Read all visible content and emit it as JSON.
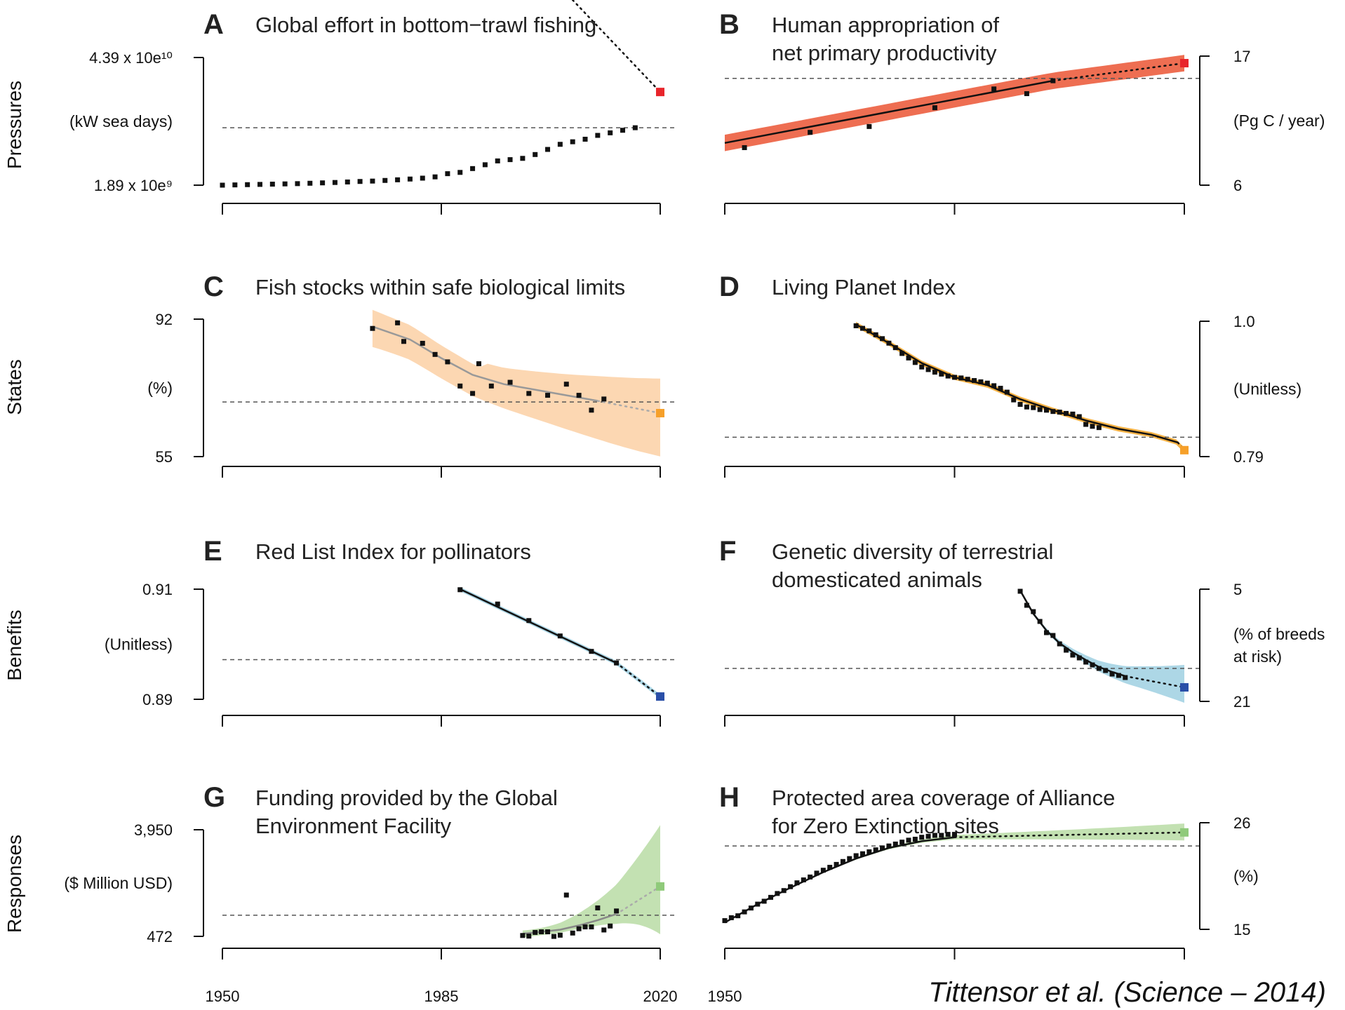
{
  "row_labels": [
    "Pressures",
    "States",
    "Benefits",
    "Responses"
  ],
  "x_axis": {
    "ticks": [
      1950,
      1985,
      2020
    ],
    "right_panel_ticks_labeled": [
      1950
    ]
  },
  "credit": "Tittensor et al. (Science – 2014)",
  "colors": {
    "pressures": "#ee6e52",
    "pressures_end": "#e8252b",
    "states": "#fbd0a4",
    "states_end": "#f6a02a",
    "states_dark": "#f4a425",
    "benefits": "#9fd0e2",
    "benefits_end": "#2a4fa8",
    "responses": "#b9dca4",
    "responses_end": "#8fca7a",
    "points": "#111111"
  },
  "chart_data": [
    {
      "id": "A",
      "type": "line",
      "title": "Global effort in bottom−trawl fishing",
      "row": "Pressures",
      "axis_side": "left",
      "y_top_label": "4.39 x 10e¹⁰",
      "y_bottom_label": "1.89 x 10e⁹",
      "y_unit": [
        "(kW sea days)"
      ],
      "ylim": [
        0,
        1
      ],
      "scale": "unitless display (normalized to axis range)",
      "target": 0.45,
      "end_value": 0.73,
      "end_year": 2020,
      "points": [
        [
          1950,
          0
        ],
        [
          1952,
          0.002
        ],
        [
          1954,
          0.004
        ],
        [
          1956,
          0.006
        ],
        [
          1958,
          0.008
        ],
        [
          1960,
          0.01
        ],
        [
          1962,
          0.012
        ],
        [
          1964,
          0.015
        ],
        [
          1966,
          0.018
        ],
        [
          1968,
          0.021
        ],
        [
          1970,
          0.025
        ],
        [
          1972,
          0.029
        ],
        [
          1974,
          0.032
        ],
        [
          1976,
          0.037
        ],
        [
          1978,
          0.042
        ],
        [
          1980,
          0.048
        ],
        [
          1982,
          0.055
        ],
        [
          1984,
          0.065
        ],
        [
          1986,
          0.09
        ],
        [
          1988,
          0.1
        ],
        [
          1990,
          0.13
        ],
        [
          1992,
          0.16
        ],
        [
          1994,
          0.19
        ],
        [
          1996,
          0.2
        ],
        [
          1998,
          0.21
        ],
        [
          2000,
          0.24
        ],
        [
          2002,
          0.28
        ],
        [
          2004,
          0.32
        ],
        [
          2006,
          0.34
        ],
        [
          2008,
          0.36
        ],
        [
          2010,
          0.39
        ],
        [
          2012,
          0.41
        ],
        [
          2014,
          0.43
        ],
        [
          2016,
          0.45
        ]
      ],
      "fit_end": 2006,
      "band_end_lo": 0.45,
      "band_end_hi": 1.0,
      "series_color": "pressures",
      "end_color": "pressures_end",
      "fit_color": "#111111"
    },
    {
      "id": "B",
      "type": "line",
      "title_lines": [
        "Human appropriation of",
        "net primary productivity"
      ],
      "row": "Pressures",
      "axis_side": "right",
      "y_top_label": "17",
      "y_bottom_label": "6",
      "y_unit": [
        "(Pg C / year)"
      ],
      "ylim": [
        6,
        17
      ],
      "target": 15.1,
      "end_value": 16.4,
      "end_year": 2020,
      "points": [
        [
          1953,
          9.2
        ],
        [
          1963,
          10.5
        ],
        [
          1972,
          11.0
        ],
        [
          1982,
          12.6
        ],
        [
          1991,
          14.2
        ],
        [
          1996,
          13.8
        ],
        [
          2000,
          14.9
        ]
      ],
      "fit_start": 1950,
      "fit_end": 2000,
      "fit_start_value": 9.6,
      "fit_end_value": 14.9,
      "band_width": 0.7,
      "series_color": "pressures",
      "end_color": "pressures_end",
      "fit_color": "#111111"
    },
    {
      "id": "C",
      "type": "line",
      "title": "Fish stocks within safe biological limits",
      "row": "States",
      "axis_side": "left",
      "y_top_label": "92",
      "y_bottom_label": "55",
      "y_unit": [
        "(%)"
      ],
      "ylim": [
        55,
        92
      ],
      "target": 69.7,
      "end_value": 66.7,
      "end_year": 2020,
      "points": [
        [
          1974,
          89.5
        ],
        [
          1978,
          91
        ],
        [
          1979,
          86
        ],
        [
          1982,
          85.5
        ],
        [
          1984,
          82.5
        ],
        [
          1986,
          80.5
        ],
        [
          1988,
          74
        ],
        [
          1990,
          72
        ],
        [
          1991,
          80
        ],
        [
          1993,
          74
        ],
        [
          1996,
          75
        ],
        [
          1999,
          72
        ],
        [
          2002,
          71.5
        ],
        [
          2005,
          74.5
        ],
        [
          2007,
          71.5
        ],
        [
          2009,
          67.5
        ],
        [
          2011,
          70.5
        ]
      ],
      "fit": [
        [
          1974,
          90
        ],
        [
          1980,
          86.5
        ],
        [
          1985,
          81.5
        ],
        [
          1990,
          77
        ],
        [
          1995,
          74.5
        ],
        [
          2000,
          73
        ],
        [
          2005,
          71.5
        ],
        [
          2010,
          70
        ]
      ],
      "band_start_lo": 85,
      "band_start_hi": 95,
      "band_end_lo": 57,
      "band_end_hi": 76,
      "series_color": "states",
      "end_color": "states_end",
      "fit_color": "#999999"
    },
    {
      "id": "D",
      "type": "line",
      "title": "Living Planet Index",
      "row": "States",
      "axis_side": "right",
      "y_top_label": "1.0",
      "y_bottom_label": "0.79",
      "y_unit": [
        "(Unitless)"
      ],
      "ylim": [
        0.79,
        1.0
      ],
      "target": 0.82,
      "end_value": 0.8,
      "end_year": 2020,
      "points": [
        [
          1970,
          0.993
        ],
        [
          1971,
          0.989
        ],
        [
          1972,
          0.985
        ],
        [
          1973,
          0.979
        ],
        [
          1974,
          0.973
        ],
        [
          1975,
          0.966
        ],
        [
          1976,
          0.959
        ],
        [
          1977,
          0.95
        ],
        [
          1978,
          0.943
        ],
        [
          1979,
          0.936
        ],
        [
          1980,
          0.929
        ],
        [
          1981,
          0.925
        ],
        [
          1982,
          0.921
        ],
        [
          1983,
          0.918
        ],
        [
          1984,
          0.915
        ],
        [
          1985,
          0.913
        ],
        [
          1986,
          0.912
        ],
        [
          1987,
          0.91
        ],
        [
          1988,
          0.908
        ],
        [
          1989,
          0.906
        ],
        [
          1990,
          0.904
        ],
        [
          1991,
          0.9
        ],
        [
          1992,
          0.896
        ],
        [
          1993,
          0.89
        ],
        [
          1994,
          0.878
        ],
        [
          1995,
          0.871
        ],
        [
          1996,
          0.867
        ],
        [
          1997,
          0.866
        ],
        [
          1998,
          0.863
        ],
        [
          1999,
          0.862
        ],
        [
          2000,
          0.86
        ],
        [
          2001,
          0.859
        ],
        [
          2002,
          0.857
        ],
        [
          2003,
          0.856
        ],
        [
          2004,
          0.852
        ],
        [
          2005,
          0.84
        ],
        [
          2006,
          0.837
        ],
        [
          2007,
          0.835
        ]
      ],
      "fit": [
        [
          1970,
          0.995
        ],
        [
          1975,
          0.966
        ],
        [
          1980,
          0.935
        ],
        [
          1985,
          0.913
        ],
        [
          1990,
          0.901
        ],
        [
          1995,
          0.879
        ],
        [
          2000,
          0.862
        ],
        [
          2005,
          0.846
        ],
        [
          2010,
          0.833
        ],
        [
          2015,
          0.824
        ],
        [
          2019,
          0.812
        ]
      ],
      "band_width": 0.004,
      "series_color": "states_dark",
      "end_color": "states_end",
      "fit_color": "#111111"
    },
    {
      "id": "E",
      "type": "line",
      "title": "Red List Index for pollinators",
      "row": "Benefits",
      "axis_side": "left",
      "y_top_label": "0.91",
      "y_bottom_label": "0.89",
      "y_unit": [
        "(Unitless)"
      ],
      "ylim": [
        0.89,
        0.91
      ],
      "target": 0.8972,
      "end_value": 0.8905,
      "end_year": 2020,
      "points": [
        [
          1988,
          0.9099
        ],
        [
          1994,
          0.9073
        ],
        [
          1999,
          0.9043
        ],
        [
          2004,
          0.9015
        ],
        [
          2009,
          0.8987
        ],
        [
          2013,
          0.8966
        ]
      ],
      "fit_start": 1988,
      "fit_end": 2013,
      "fit_start_value": 0.91,
      "fit_end_value": 0.8966,
      "band_width": 0.0004,
      "series_color": "benefits",
      "end_color": "benefits_end",
      "fit_color": "#111111"
    },
    {
      "id": "F",
      "type": "line",
      "title_lines": [
        "Genetic diversity of terrestrial",
        "domesticated animals"
      ],
      "row": "Benefits",
      "axis_side": "right",
      "y_top_label": "5",
      "y_bottom_label": "21",
      "y_unit": [
        "(% of breeds",
        "at risk)"
      ],
      "ylim": [
        21,
        5
      ],
      "target": 16.3,
      "end_value": 19.0,
      "end_year": 2020,
      "points": [
        [
          1995,
          5.3
        ],
        [
          1996,
          7.3
        ],
        [
          1997,
          8.2
        ],
        [
          1998,
          9.6
        ],
        [
          1999,
          11.2
        ],
        [
          2000,
          11.6
        ],
        [
          2001,
          12.8
        ],
        [
          2002,
          13.7
        ],
        [
          2003,
          14.4
        ],
        [
          2004,
          14.8
        ],
        [
          2005,
          15.4
        ],
        [
          2006,
          15.8
        ],
        [
          2007,
          16.3
        ],
        [
          2008,
          16.6
        ],
        [
          2009,
          17.1
        ],
        [
          2010,
          17.3
        ],
        [
          2011,
          17.6
        ]
      ],
      "fit": [
        [
          1995,
          5.2
        ],
        [
          1997,
          8.5
        ],
        [
          1999,
          10.9
        ],
        [
          2001,
          12.7
        ],
        [
          2003,
          14.0
        ],
        [
          2005,
          15.1
        ],
        [
          2007,
          16.1
        ],
        [
          2009,
          16.8
        ],
        [
          2011,
          17.4
        ]
      ],
      "band_end_lo": 16.0,
      "band_end_hi": 21.0,
      "series_color": "benefits",
      "end_color": "benefits_end",
      "fit_color": "#111111"
    },
    {
      "id": "G",
      "type": "line",
      "title_lines": [
        "Funding provided by the Global",
        "Environment Facility"
      ],
      "row": "Responses",
      "axis_side": "left",
      "y_top_label": "3,950",
      "y_bottom_label": "472",
      "y_unit": [
        "($ Million USD)"
      ],
      "ylim": [
        472,
        3950
      ],
      "target": 1160,
      "end_value": 2100,
      "end_year": 2020,
      "points": [
        [
          1998,
          500
        ],
        [
          1999,
          480
        ],
        [
          2000,
          600
        ],
        [
          2001,
          620
        ],
        [
          2002,
          620
        ],
        [
          2003,
          470
        ],
        [
          2004,
          510
        ],
        [
          2005,
          1820
        ],
        [
          2006,
          580
        ],
        [
          2007,
          720
        ],
        [
          2008,
          780
        ],
        [
          2009,
          780
        ],
        [
          2010,
          1400
        ],
        [
          2011,
          680
        ],
        [
          2012,
          810
        ],
        [
          2013,
          1300
        ]
      ],
      "fit": [
        [
          1998,
          560
        ],
        [
          2001,
          620
        ],
        [
          2004,
          690
        ],
        [
          2007,
          830
        ],
        [
          2010,
          1000
        ],
        [
          2013,
          1200
        ]
      ],
      "band_start_lo": 470,
      "band_start_hi": 700,
      "band_end_lo": 800,
      "band_end_hi": 4100,
      "series_color": "responses",
      "end_color": "responses_end",
      "fit_color": "#888888"
    },
    {
      "id": "H",
      "type": "line",
      "title_lines": [
        "Protected area coverage of Alliance",
        "for Zero Extinction sites"
      ],
      "row": "Responses",
      "axis_side": "right",
      "y_top_label": "26",
      "y_bottom_label": "15",
      "y_unit": [
        "(%)"
      ],
      "ylim": [
        15,
        26
      ],
      "target": 23.6,
      "end_value": 25.0,
      "end_year": 2020,
      "points": [
        [
          1950,
          15.9
        ],
        [
          1951,
          16.2
        ],
        [
          1952,
          16.4
        ],
        [
          1953,
          16.8
        ],
        [
          1954,
          17.2
        ],
        [
          1955,
          17.6
        ],
        [
          1956,
          17.9
        ],
        [
          1957,
          18.3
        ],
        [
          1958,
          18.7
        ],
        [
          1959,
          19.0
        ],
        [
          1960,
          19.4
        ],
        [
          1961,
          19.8
        ],
        [
          1962,
          20.1
        ],
        [
          1963,
          20.4
        ],
        [
          1964,
          20.8
        ],
        [
          1965,
          21.1
        ],
        [
          1966,
          21.4
        ],
        [
          1967,
          21.7
        ],
        [
          1968,
          22.0
        ],
        [
          1969,
          22.3
        ],
        [
          1970,
          22.6
        ],
        [
          1971,
          22.8
        ],
        [
          1972,
          23.0
        ],
        [
          1973,
          23.2
        ],
        [
          1974,
          23.4
        ],
        [
          1975,
          23.6
        ],
        [
          1976,
          23.8
        ],
        [
          1977,
          24.0
        ],
        [
          1978,
          24.2
        ],
        [
          1979,
          24.3
        ],
        [
          1980,
          24.5
        ],
        [
          1981,
          24.6
        ],
        [
          1982,
          24.7
        ],
        [
          1983,
          24.7
        ],
        [
          1984,
          24.8
        ],
        [
          1985,
          24.8
        ]
      ],
      "fit": [
        [
          1950,
          15.7
        ],
        [
          1955,
          17.6
        ],
        [
          1960,
          19.3
        ],
        [
          1965,
          20.9
        ],
        [
          1970,
          22.3
        ],
        [
          1975,
          23.4
        ],
        [
          1980,
          24.1
        ],
        [
          1985,
          24.5
        ]
      ],
      "band_end_lo": 24.2,
      "band_end_hi": 25.9,
      "series_color": "responses",
      "end_color": "responses_end",
      "fit_color": "#111111"
    }
  ]
}
